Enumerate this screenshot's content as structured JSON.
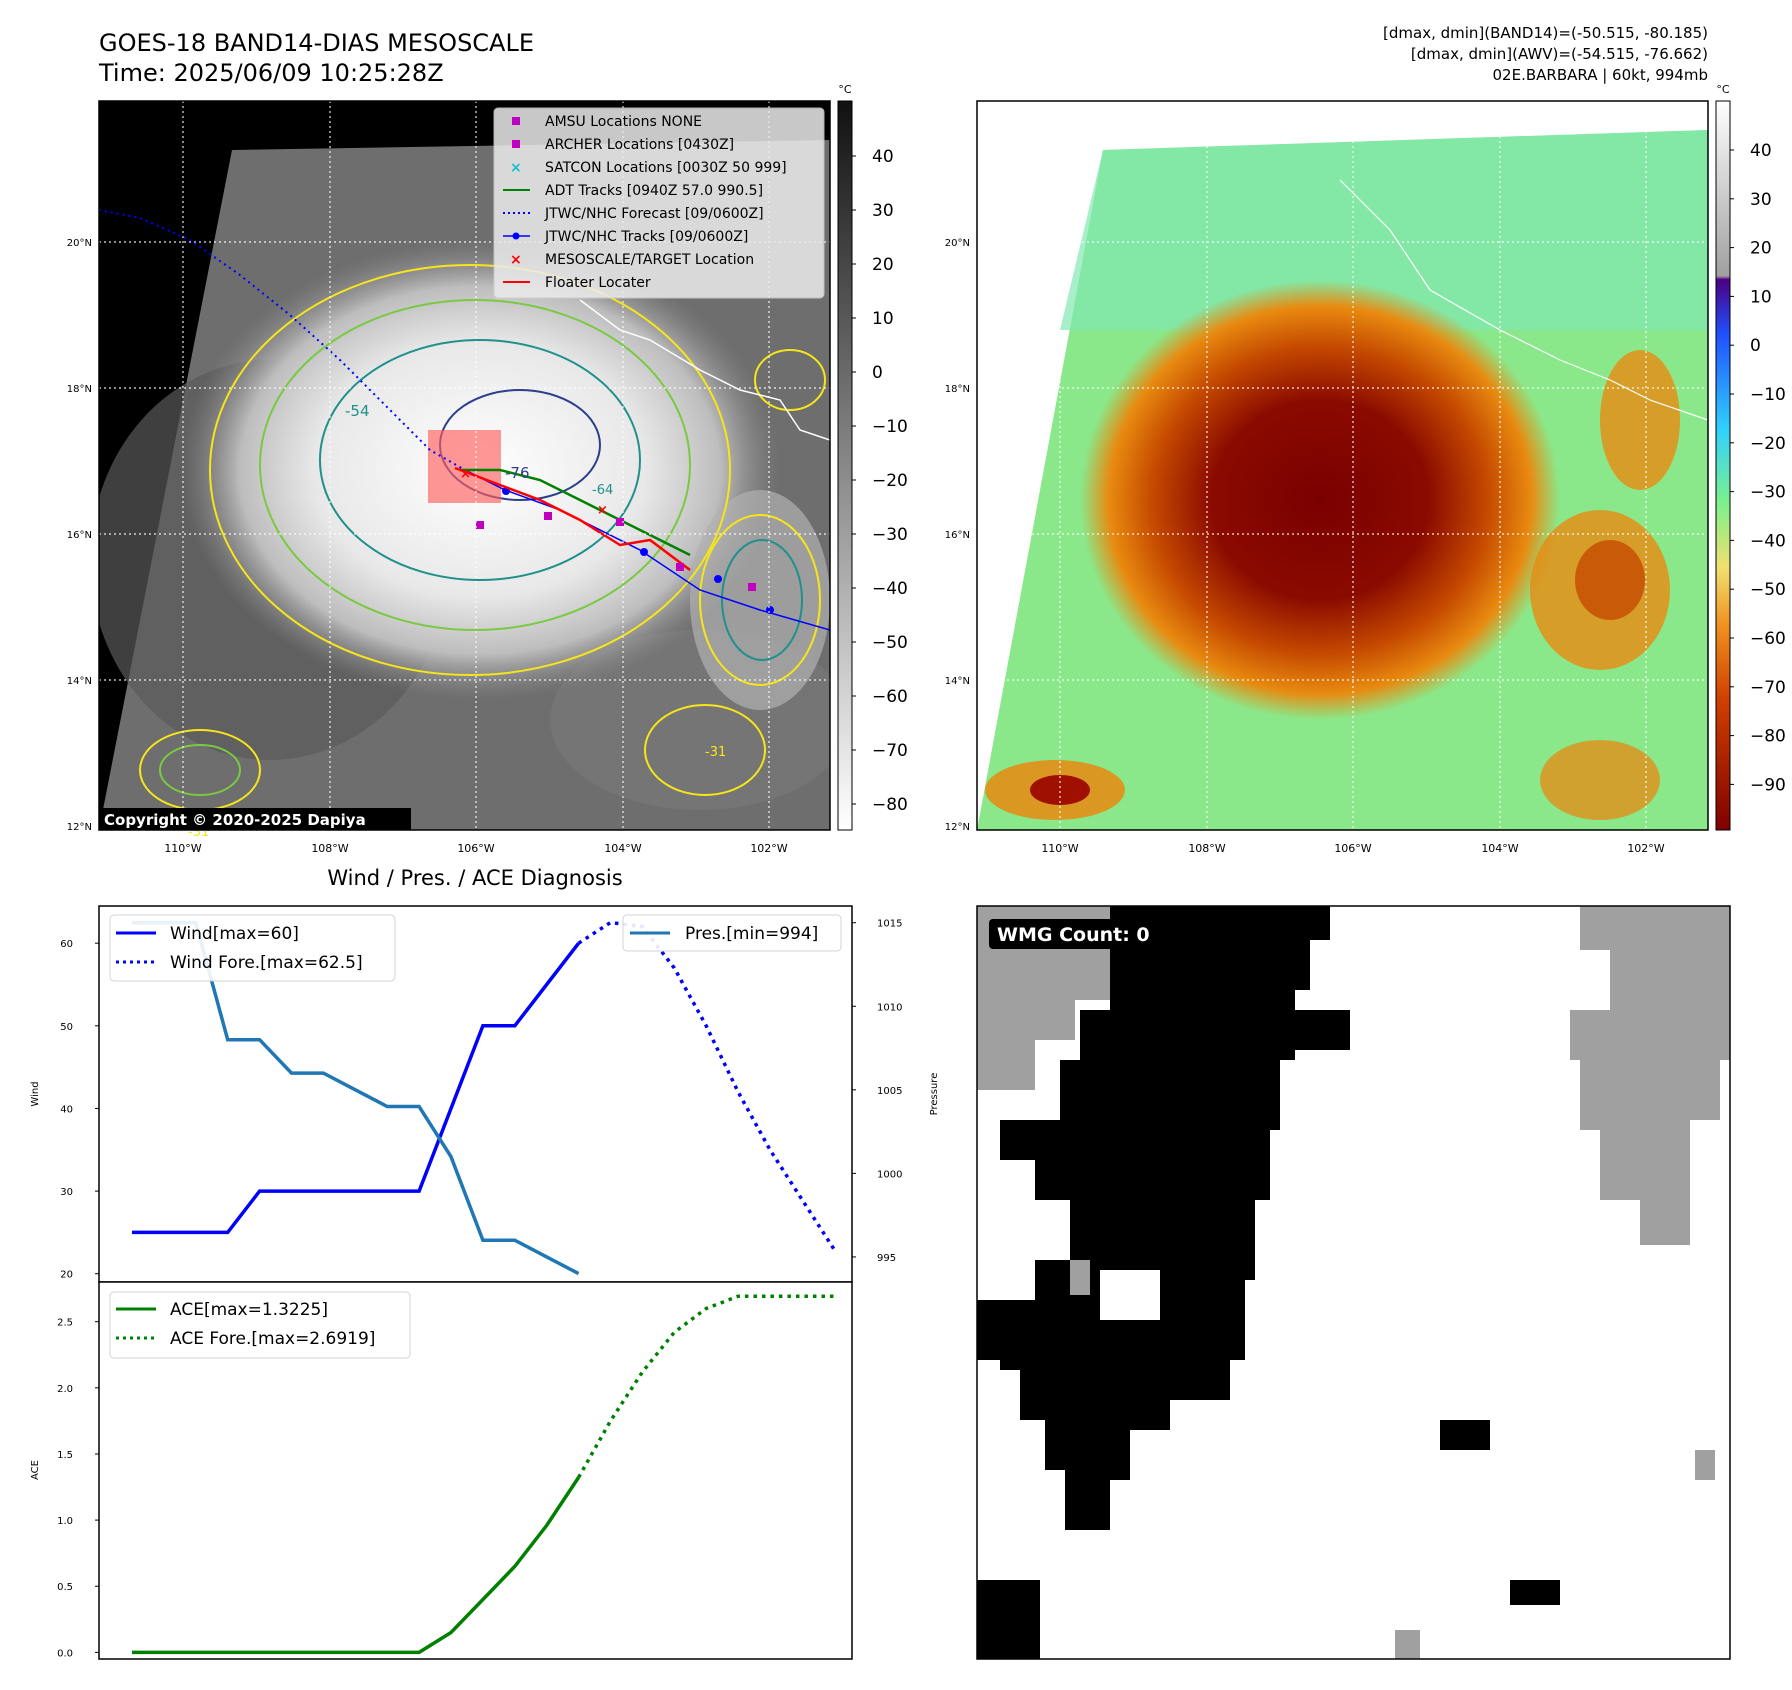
{
  "header": {
    "title_line1": "GOES-18 BAND14-DIAS MESOSCALE",
    "title_line2": "Time: 2025/06/09 10:25:28Z",
    "info_line1": "[dmax, dmin](BAND14)=(-50.515, -80.185)",
    "info_line2": "[dmax, dmin](AWV)=(-54.515, -76.662)",
    "info_line3": "02E.BARBARA | 60kt, 994mb"
  },
  "map_ir": {
    "lat_labels": [
      "20°N",
      "18°N",
      "16°N",
      "14°N",
      "12°N"
    ],
    "lon_labels": [
      "110°W",
      "108°W",
      "106°W",
      "104°W",
      "102°W"
    ],
    "contour_labels": [
      "-54",
      "-76",
      "-64",
      "-31",
      "-31"
    ],
    "copyright": "Copyright © 2020-2025 Dapiya",
    "colorbar_unit": "°C",
    "colorbar_ticks": [
      "40",
      "30",
      "20",
      "10",
      "0",
      "−10",
      "−20",
      "−30",
      "−40",
      "−50",
      "−60",
      "−70",
      "−80"
    ],
    "legend": [
      {
        "label": "AMSU Locations NONE",
        "color": "#c000c0",
        "marker": "square"
      },
      {
        "label": "ARCHER Locations [0430Z]",
        "color": "#c000c0",
        "marker": "square"
      },
      {
        "label": "SATCON Locations [0030Z 50 999]",
        "color": "#17becf",
        "marker": "x"
      },
      {
        "label": "ADT Tracks [0940Z 57.0 990.5]",
        "color": "#008000",
        "marker": "line"
      },
      {
        "label": "JTWC/NHC Forecast [09/0600Z]",
        "color": "#0000ff",
        "marker": "dotted"
      },
      {
        "label": "JTWC/NHC Tracks [09/0600Z]",
        "color": "#0000ff",
        "marker": "line-dot"
      },
      {
        "label": "MESOSCALE/TARGET Location",
        "color": "#ff0000",
        "marker": "x"
      },
      {
        "label": "Floater Locater",
        "color": "#ff0000",
        "marker": "line"
      }
    ]
  },
  "map_color": {
    "lat_labels": [
      "20°N",
      "18°N",
      "16°N",
      "14°N",
      "12°N"
    ],
    "lon_labels": [
      "110°W",
      "108°W",
      "106°W",
      "104°W",
      "102°W"
    ],
    "colorbar_unit": "°C",
    "colorbar_ticks": [
      "40",
      "30",
      "20",
      "10",
      "0",
      "−10",
      "−20",
      "−30",
      "−40",
      "−50",
      "−60",
      "−70",
      "−80",
      "−90"
    ]
  },
  "wmg": {
    "label": "WMG Count: 0"
  },
  "chart_data": [
    {
      "type": "line",
      "title": "Wind / Pres. / ACE Diagnosis",
      "ylabel": "Wind",
      "ylabel_right": "Pressure",
      "ylim": [
        19,
        64.5
      ],
      "ylim_right": [
        993.5,
        1016
      ],
      "yticks": [
        20,
        30,
        40,
        50,
        60
      ],
      "yticks_right": [
        995,
        1000,
        1005,
        1010,
        1015
      ],
      "series": [
        {
          "name": "Wind[max=60]",
          "style": "solid",
          "color": "#0000ff",
          "axis": "left",
          "x": [
            0,
            1,
            2,
            3,
            4,
            5,
            6,
            7,
            8,
            9,
            10,
            11,
            12,
            13,
            14
          ],
          "values": [
            25,
            25,
            25,
            25,
            30,
            30,
            30,
            30,
            30,
            30,
            40,
            50,
            50,
            55,
            60
          ]
        },
        {
          "name": "Wind Fore.[max=62.5]",
          "style": "dotted",
          "color": "#0000ff",
          "axis": "left",
          "x": [
            14,
            15,
            16,
            17,
            18,
            19,
            20,
            21,
            22
          ],
          "values": [
            60,
            62.5,
            62,
            57,
            50,
            42,
            35,
            29,
            23
          ]
        },
        {
          "name": "Pres.[min=994]",
          "style": "solid",
          "color": "#1f77b4",
          "axis": "right",
          "x": [
            0,
            1,
            2,
            3,
            4,
            5,
            6,
            7,
            8,
            9,
            10,
            11,
            12,
            13,
            14
          ],
          "values": [
            1015,
            1015,
            1015,
            1008,
            1008,
            1006,
            1006,
            1005,
            1004,
            1004,
            1001,
            996,
            996,
            995,
            994
          ]
        }
      ]
    },
    {
      "type": "line",
      "ylabel": "ACE",
      "ylim": [
        -0.05,
        2.8
      ],
      "yticks": [
        0.0,
        0.5,
        1.0,
        1.5,
        2.0,
        2.5
      ],
      "series": [
        {
          "name": "ACE[max=1.3225]",
          "style": "solid",
          "color": "#008000",
          "x": [
            0,
            1,
            2,
            3,
            4,
            5,
            6,
            7,
            8,
            9,
            10,
            11,
            12,
            13,
            14
          ],
          "values": [
            0,
            0,
            0,
            0,
            0,
            0,
            0,
            0,
            0,
            0,
            0.15,
            0.4,
            0.65,
            0.96,
            1.3225
          ]
        },
        {
          "name": "ACE Fore.[max=2.6919]",
          "style": "dotted",
          "color": "#008000",
          "x": [
            14,
            15,
            16,
            17,
            18,
            19,
            20,
            21,
            22
          ],
          "values": [
            1.3225,
            1.75,
            2.12,
            2.42,
            2.6,
            2.6919,
            2.6919,
            2.6919,
            2.6919
          ]
        }
      ]
    }
  ]
}
